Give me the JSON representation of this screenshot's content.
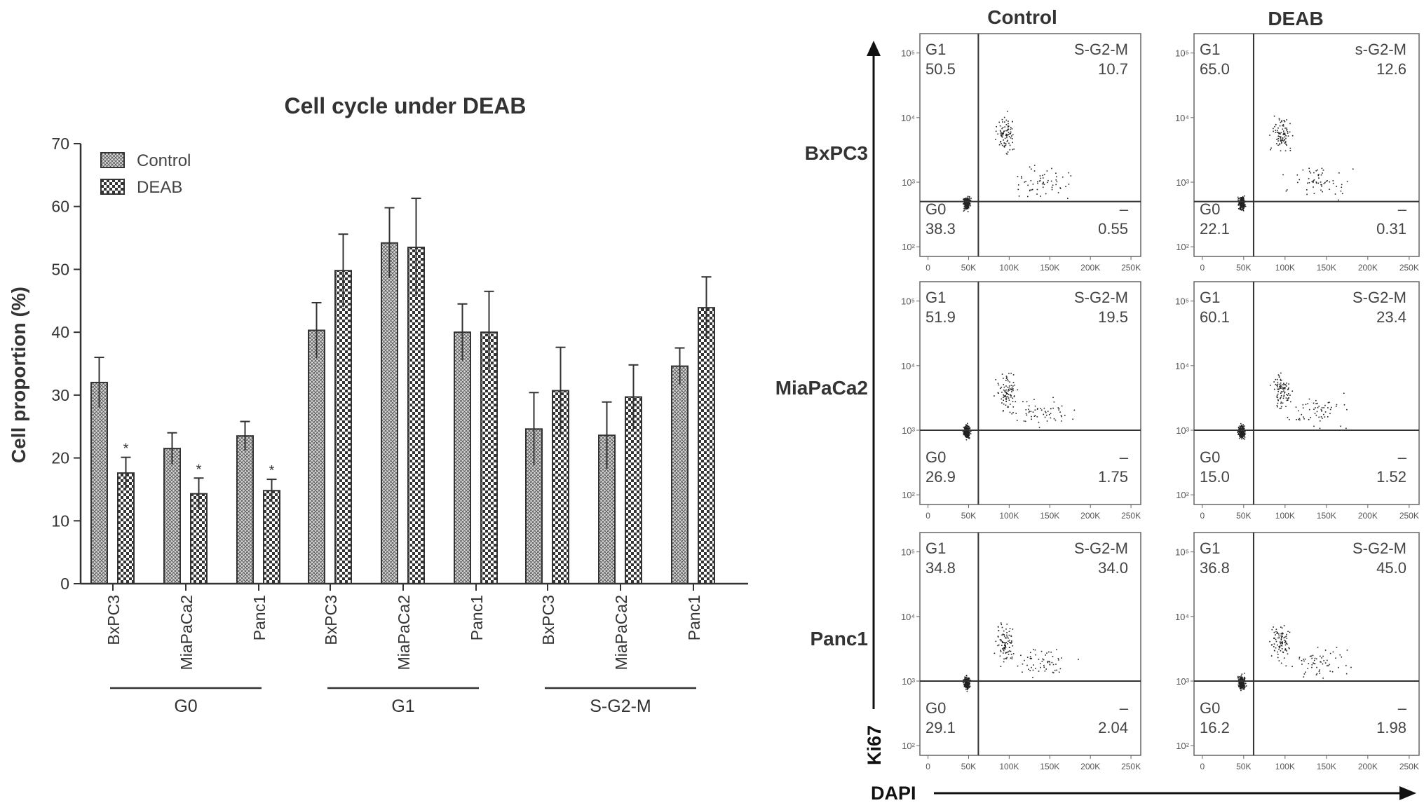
{
  "chart_data": [
    {
      "type": "bar",
      "title": "Cell cycle under DEAB",
      "ylabel": "Cell proportion (%)",
      "xlabel": "",
      "ylim": [
        0,
        70
      ],
      "yticks": [
        "0",
        "10",
        "20",
        "30",
        "40",
        "50",
        "60",
        "70"
      ],
      "categories": [
        "BxPC3",
        "MiaPaCa2",
        "Panc1",
        "BxPC3",
        "MiaPaCa2",
        "Panc1",
        "BxPC3",
        "MiaPaCa2",
        "Panc1"
      ],
      "groups": [
        {
          "label": "G0",
          "categories": [
            0,
            1,
            2
          ]
        },
        {
          "label": "G1",
          "categories": [
            3,
            4,
            5
          ]
        },
        {
          "label": "S-G2-M",
          "categories": [
            6,
            7,
            8
          ]
        }
      ],
      "legend_position": "top-left",
      "grid": false,
      "significance_marker": "*",
      "series": [
        {
          "name": "Control",
          "pattern": "fine-crosshatch",
          "values": [
            32.0,
            21.5,
            23.5,
            40.3,
            54.2,
            40.0,
            24.6,
            23.6,
            34.6
          ],
          "errors": [
            4.0,
            2.5,
            2.3,
            4.4,
            5.6,
            4.5,
            5.8,
            5.3,
            2.9
          ],
          "significant": [
            false,
            false,
            false,
            false,
            false,
            false,
            false,
            false,
            false
          ]
        },
        {
          "name": "DEAB",
          "pattern": "checkered",
          "values": [
            17.6,
            14.3,
            14.8,
            49.8,
            53.5,
            40.0,
            30.7,
            29.7,
            43.9
          ],
          "errors": [
            2.5,
            2.5,
            1.8,
            5.8,
            7.8,
            6.5,
            6.9,
            5.1,
            4.9
          ],
          "significant": [
            true,
            true,
            true,
            false,
            false,
            false,
            false,
            false,
            false
          ]
        }
      ]
    },
    {
      "type": "scatter",
      "description": "flow cytometry dot plots",
      "columns": [
        "Control",
        "DEAB"
      ],
      "rows": [
        "BxPC3",
        "MiaPaCa2",
        "Panc1"
      ],
      "xlabel": "DAPI",
      "ylabel": "Ki67",
      "xticks": [
        "0",
        "50K",
        "100K",
        "150K",
        "200K",
        "250K"
      ],
      "yticks": [
        "10²",
        "10³",
        "10⁴",
        "10⁵"
      ],
      "gate_x": 62000,
      "gate_y_exp": [
        2.7,
        3.0,
        3.0
      ],
      "panels": [
        [
          {
            "G1_label": "G1",
            "G1": "50.5",
            "SG2M_label": "S-G2-M",
            "SG2M": "10.7",
            "G0_label": "G0",
            "G0": "38.3",
            "other_label": "–",
            "other": "0.55"
          },
          {
            "G1_label": "G1",
            "G1": "65.0",
            "SG2M_label": "s-G2-M",
            "SG2M": "12.6",
            "G0_label": "G0",
            "G0": "22.1",
            "other_label": "–",
            "other": "0.31"
          }
        ],
        [
          {
            "G1_label": "G1",
            "G1": "51.9",
            "SG2M_label": "S-G2-M",
            "SG2M": "19.5",
            "G0_label": "G0",
            "G0": "26.9",
            "other_label": "–",
            "other": "1.75"
          },
          {
            "G1_label": "G1",
            "G1": "60.1",
            "SG2M_label": "S-G2-M",
            "SG2M": "23.4",
            "G0_label": "G0",
            "G0": "15.0",
            "other_label": "–",
            "other": "1.52"
          }
        ],
        [
          {
            "G1_label": "G1",
            "G1": "34.8",
            "SG2M_label": "S-G2-M",
            "SG2M": "34.0",
            "G0_label": "G0",
            "G0": "29.1",
            "other_label": "–",
            "other": "2.04"
          },
          {
            "G1_label": "G1",
            "G1": "36.8",
            "SG2M_label": "S-G2-M",
            "SG2M": "45.0",
            "G0_label": "G0",
            "G0": "16.2",
            "other_label": "–",
            "other": "1.98"
          }
        ]
      ]
    }
  ]
}
